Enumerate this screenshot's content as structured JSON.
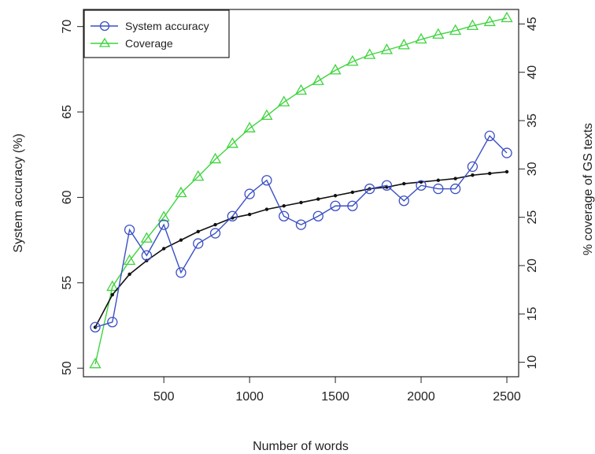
{
  "chart_data": {
    "type": "line",
    "xlabel": "Number of words",
    "ylabel": "System accuracy (%)",
    "y2label": "% coverage of GS texts",
    "xlim": [
      100,
      2500
    ],
    "ylim": [
      49.5,
      71
    ],
    "y2lim": [
      8.5,
      46.5
    ],
    "xticks": [
      500,
      1000,
      1500,
      2000,
      2500
    ],
    "yticks": [
      50,
      55,
      60,
      65,
      70
    ],
    "y2ticks": [
      10,
      15,
      20,
      25,
      30,
      35,
      40,
      45
    ],
    "grid": false,
    "legend_position": "top-left",
    "x": [
      100,
      200,
      300,
      400,
      500,
      600,
      700,
      800,
      900,
      1000,
      1100,
      1200,
      1300,
      1400,
      1500,
      1600,
      1700,
      1800,
      1900,
      2000,
      2100,
      2200,
      2300,
      2400,
      2500
    ],
    "series": [
      {
        "name": "System accuracy",
        "axis": "left",
        "color": "#3a4fc4",
        "marker": "circle",
        "values": [
          52.4,
          52.7,
          58.1,
          56.6,
          58.4,
          55.6,
          57.3,
          57.9,
          58.9,
          60.2,
          61.0,
          58.9,
          58.4,
          58.9,
          59.5,
          59.5,
          60.5,
          60.7,
          59.8,
          60.7,
          60.5,
          60.5,
          61.8,
          63.6,
          62.6
        ]
      },
      {
        "name": "Coverage",
        "axis": "right",
        "color": "#3ed43e",
        "marker": "triangle",
        "values": [
          9.8,
          17.8,
          20.5,
          22.8,
          25.0,
          27.5,
          29.2,
          31.0,
          32.6,
          34.2,
          35.5,
          36.9,
          38.1,
          39.1,
          40.2,
          41.1,
          41.8,
          42.3,
          42.8,
          43.4,
          43.9,
          44.3,
          44.8,
          45.2,
          45.6
        ]
      },
      {
        "axis": "left",
        "color": "#111111",
        "marker": "dot",
        "values": [
          52.4,
          54.3,
          55.5,
          56.3,
          57.0,
          57.5,
          58.0,
          58.4,
          58.8,
          59.0,
          59.3,
          59.5,
          59.7,
          59.9,
          60.1,
          60.3,
          60.5,
          60.6,
          60.8,
          60.9,
          61.0,
          61.1,
          61.3,
          61.4,
          61.5
        ]
      }
    ]
  }
}
